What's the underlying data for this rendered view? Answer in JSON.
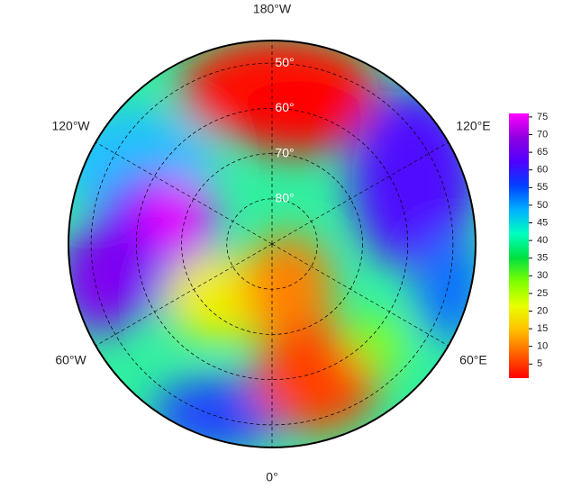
{
  "chart_data": {
    "type": "polar-map",
    "rlim": [
      45,
      90
    ],
    "lon_labels": [
      {
        "value": -180,
        "label": "180°W"
      },
      {
        "value": 120,
        "label": "120°E"
      },
      {
        "value": 60,
        "label": "60°E"
      },
      {
        "value": 0,
        "label": "0°"
      },
      {
        "value": -60,
        "label": "60°W"
      },
      {
        "value": -120,
        "label": "120°W"
      }
    ],
    "lat_labels": [
      {
        "value": 50,
        "label": "50°"
      },
      {
        "value": 60,
        "label": "60°"
      },
      {
        "value": 70,
        "label": "70°"
      },
      {
        "value": 80,
        "label": "80°"
      }
    ],
    "colorbar": {
      "lim": [
        1,
        76
      ],
      "ticks": [
        5,
        10,
        15,
        20,
        25,
        30,
        35,
        40,
        45,
        50,
        55,
        60,
        65,
        70,
        75
      ],
      "colors": [
        "#ff0000",
        "#ff6000",
        "#ffc000",
        "#e8ff00",
        "#80ff00",
        "#00e040",
        "#00ffc0",
        "#00b0ff",
        "#0040ff",
        "#5000ff",
        "#9000e0",
        "#ff00ff"
      ]
    }
  }
}
